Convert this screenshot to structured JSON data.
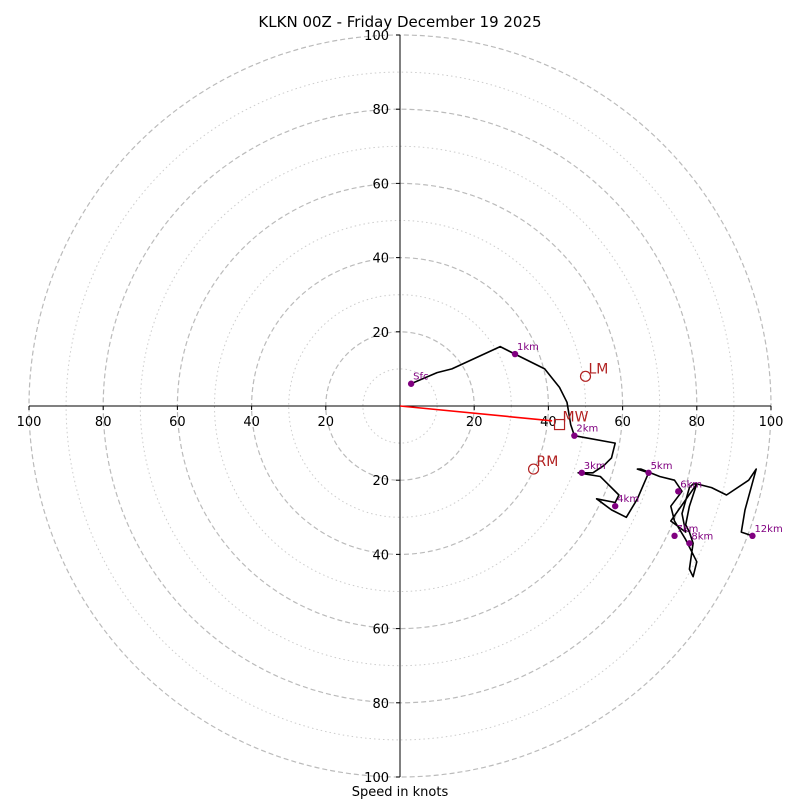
{
  "chart_data": {
    "type": "line",
    "title": "KLKN 00Z - Friday December 19 2025",
    "xlabel": "Speed in knots",
    "ylabel": "",
    "xlim": [
      -100,
      100
    ],
    "ylim": [
      -100,
      100
    ],
    "rings": [
      20,
      40,
      60,
      80,
      100
    ],
    "minor_rings": [
      10,
      30,
      50,
      70,
      90
    ],
    "x_tick_labels": [
      {
        "value": -100,
        "text": "100"
      },
      {
        "value": -80,
        "text": "80"
      },
      {
        "value": -60,
        "text": "60"
      },
      {
        "value": -40,
        "text": "40"
      },
      {
        "value": -20,
        "text": "20"
      },
      {
        "value": 20,
        "text": "20"
      },
      {
        "value": 40,
        "text": "40"
      },
      {
        "value": 60,
        "text": "60"
      },
      {
        "value": 80,
        "text": "80"
      },
      {
        "value": 100,
        "text": "100"
      }
    ],
    "y_tick_labels": [
      {
        "value": 100,
        "text": "100"
      },
      {
        "value": 80,
        "text": "80"
      },
      {
        "value": 60,
        "text": "60"
      },
      {
        "value": 40,
        "text": "40"
      },
      {
        "value": 20,
        "text": "20"
      },
      {
        "value": -20,
        "text": "20"
      },
      {
        "value": -40,
        "text": "40"
      },
      {
        "value": -60,
        "text": "60"
      },
      {
        "value": -80,
        "text": "80"
      },
      {
        "value": -100,
        "text": "100"
      }
    ],
    "series": [
      {
        "name": "hodograph",
        "color": "#000000",
        "u": [
          3,
          10,
          14,
          27,
          31,
          39,
          43,
          45,
          46,
          47,
          58,
          57,
          56,
          55,
          52,
          48,
          54,
          55,
          59,
          58,
          53,
          57,
          61,
          64,
          67,
          64,
          65,
          70,
          74,
          76,
          73,
          74,
          77,
          80,
          79,
          78,
          79,
          78,
          77,
          78,
          80,
          79,
          78,
          76,
          77,
          73,
          80,
          84,
          88,
          94,
          96,
          93,
          92,
          95
        ],
        "v": [
          6,
          9,
          10,
          16,
          14,
          10,
          5,
          1,
          -5,
          -8,
          -10,
          -14,
          -15,
          -16,
          -18,
          -18,
          -19,
          -20,
          -24,
          -26,
          -25,
          -28,
          -30,
          -25,
          -18,
          -17,
          -17,
          -19,
          -20,
          -23,
          -27,
          -31,
          -36,
          -42,
          -46,
          -44,
          -37,
          -34,
          -32,
          -27,
          -21,
          -21,
          -22,
          -29,
          -34,
          -31,
          -21,
          -22,
          -24,
          -20,
          -17,
          -28,
          -34,
          -35
        ]
      },
      {
        "name": "mean-wind-vector",
        "color": "#ff0000",
        "u": [
          0,
          41
        ],
        "v": [
          0,
          -4
        ]
      }
    ],
    "height_markers": [
      {
        "label": "Sfc",
        "u": 3,
        "v": 6
      },
      {
        "label": "1km",
        "u": 31,
        "v": 14
      },
      {
        "label": "2km",
        "u": 47,
        "v": -8
      },
      {
        "label": "3km",
        "u": 49,
        "v": -18
      },
      {
        "label": "4km",
        "u": 58,
        "v": -27
      },
      {
        "label": "5km",
        "u": 67,
        "v": -18
      },
      {
        "label": "6km",
        "u": 75,
        "v": -23
      },
      {
        "label": "7km",
        "u": 74,
        "v": -35
      },
      {
        "label": "8km",
        "u": 78,
        "v": -37
      },
      {
        "label": "12km",
        "u": 95,
        "v": -35
      }
    ],
    "motion_markers": [
      {
        "label": "LM",
        "u": 50,
        "v": 8,
        "shape": "circle"
      },
      {
        "label": "MW",
        "u": 43,
        "v": -5,
        "shape": "square"
      },
      {
        "label": "RM",
        "u": 36,
        "v": -17,
        "shape": "circle"
      }
    ],
    "colors": {
      "hodograph": "#000000",
      "marker": "#800080",
      "motion": "#b22222",
      "mean_wind": "#ff0000",
      "ring_major": "#bbbbbb",
      "ring_minor": "#cccccc"
    }
  }
}
